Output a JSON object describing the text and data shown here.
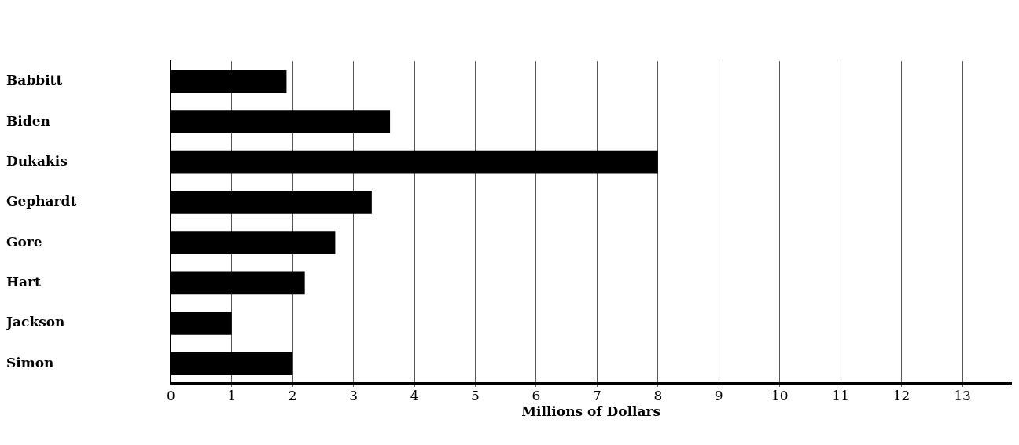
{
  "chart_data": {
    "type": "bar",
    "orientation": "horizontal",
    "xlabel": "Millions of Dollars",
    "categories": [
      "Babbitt",
      "Biden",
      "Dukakis",
      "Gephardt",
      "Gore",
      "Hart",
      "Jackson",
      "Simon"
    ],
    "values": [
      1.9,
      3.6,
      8.0,
      3.3,
      2.7,
      2.2,
      1.0,
      2.0
    ],
    "color": "#000000",
    "xlim": [
      0,
      13.8
    ],
    "xticks": [
      0,
      1,
      2,
      3,
      4,
      5,
      6,
      7,
      8,
      9,
      10,
      11,
      12,
      13
    ],
    "grid": "x",
    "legend": false
  }
}
